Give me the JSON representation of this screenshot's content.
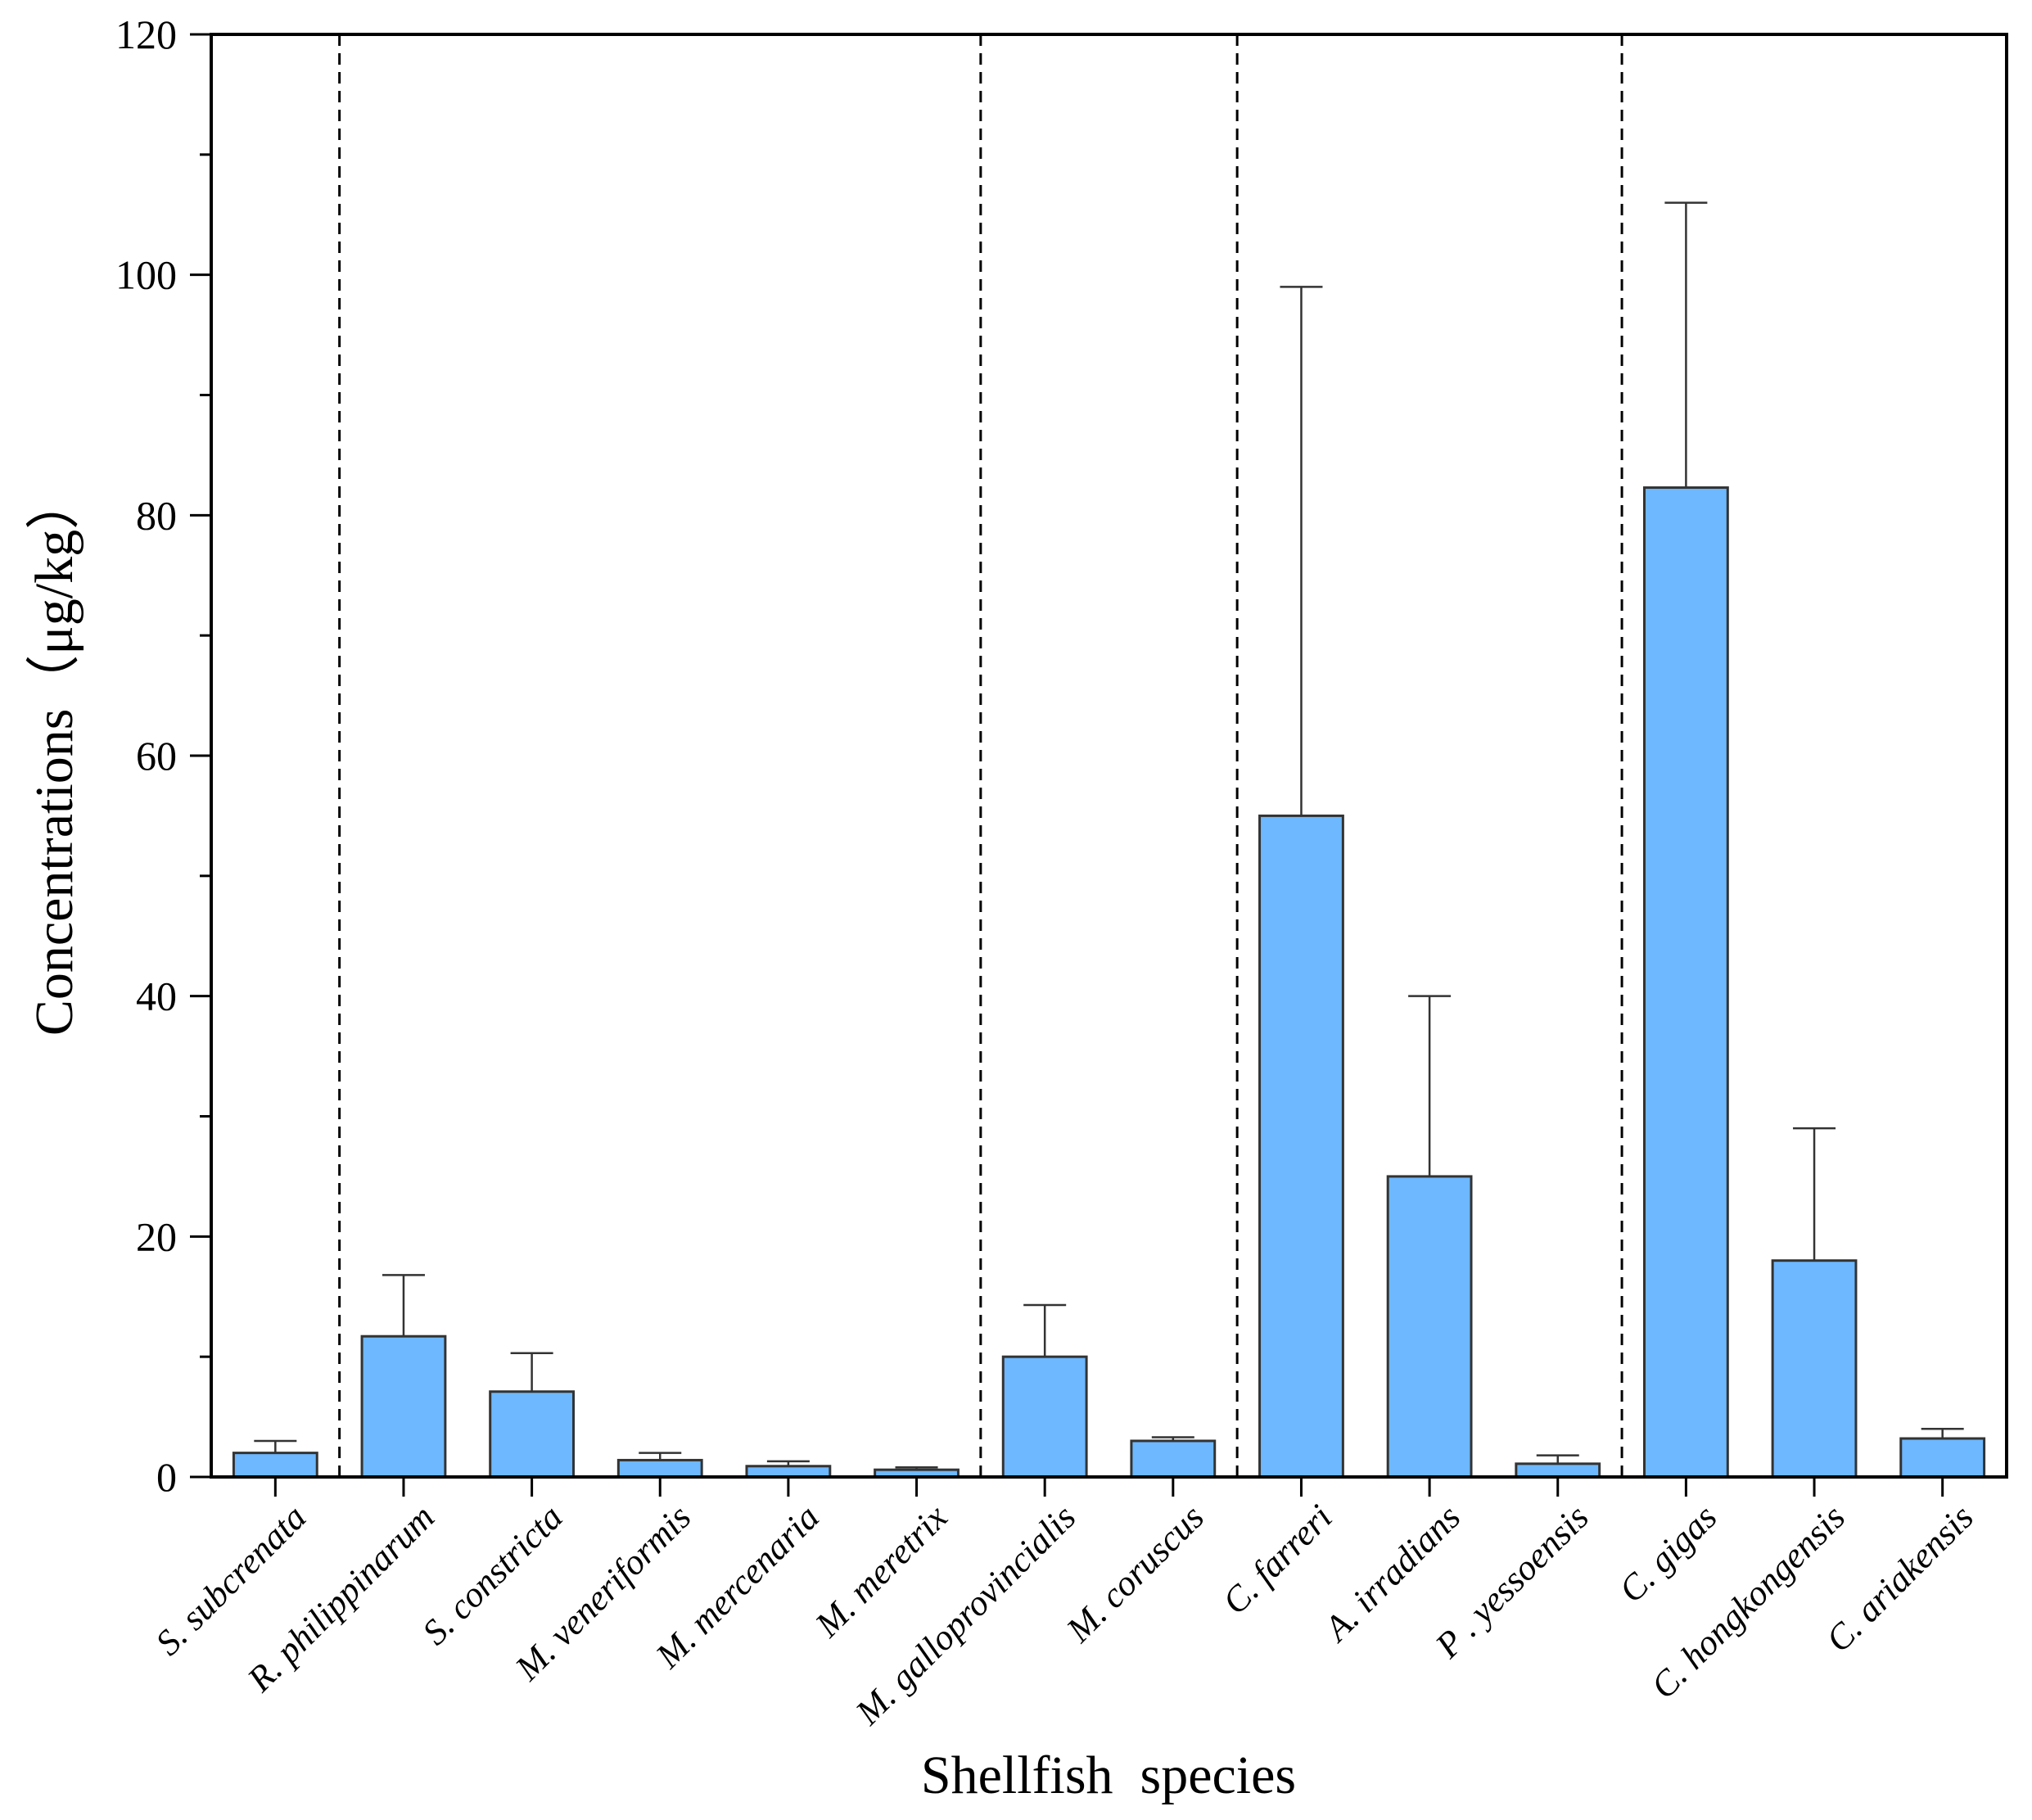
{
  "chart_data": {
    "type": "bar",
    "title": "",
    "xlabel": "Shellfish  species",
    "ylabel": "Concentrations（μg/kg）",
    "ylim": [
      0,
      120
    ],
    "yticks": [
      0,
      20,
      40,
      60,
      80,
      100,
      120
    ],
    "bar_color": "#6db8ff",
    "bar_edge_color": "#333333",
    "categories": [
      "S. subcrenata",
      "R. philippinarum",
      "S. constricta",
      "M. veneriformis",
      "M. mercenaria",
      "M. meretrix",
      "M. galloprovincialis",
      "M. coruscus",
      "C. farreri",
      "A. irradians",
      "P . yessoensis",
      "C. gigas",
      "C. hongkongensis",
      "C. ariakensis"
    ],
    "values": [
      2.0,
      11.7,
      7.1,
      1.4,
      0.9,
      0.6,
      10.0,
      3.0,
      55.0,
      25.0,
      1.1,
      82.3,
      18.0,
      3.2
    ],
    "errors": [
      1.0,
      5.1,
      3.2,
      0.6,
      0.4,
      0.2,
      4.3,
      0.3,
      44.0,
      15.0,
      0.7,
      23.7,
      11.0,
      0.8
    ],
    "group_separators_after_index": [
      0,
      5,
      7,
      10
    ]
  }
}
